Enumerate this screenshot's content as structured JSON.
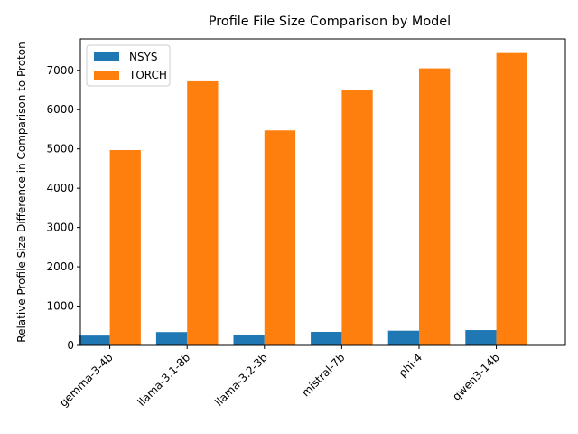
{
  "chart_data": {
    "type": "bar",
    "title": "Profile File Size Comparison by Model",
    "xlabel": "",
    "ylabel": "Relative Profile Size Difference in Comparison to Proton",
    "categories": [
      "gemma-3-4b",
      "llama-3.1-8b",
      "llama-3.2-3b",
      "mistral-7b",
      "phi-4",
      "qwen3-14b"
    ],
    "series": [
      {
        "name": "NSYS",
        "color": "#1f77b4",
        "values": [
          250,
          340,
          270,
          345,
          375,
          390
        ]
      },
      {
        "name": "TORCH",
        "color": "#ff7f0e",
        "values": [
          4970,
          6720,
          5470,
          6490,
          7050,
          7440
        ]
      }
    ],
    "ylim": [
      0,
      7800
    ],
    "yticks": [
      0,
      1000,
      2000,
      3000,
      4000,
      5000,
      6000,
      7000
    ],
    "grid": false,
    "legend_position": "top-left"
  }
}
